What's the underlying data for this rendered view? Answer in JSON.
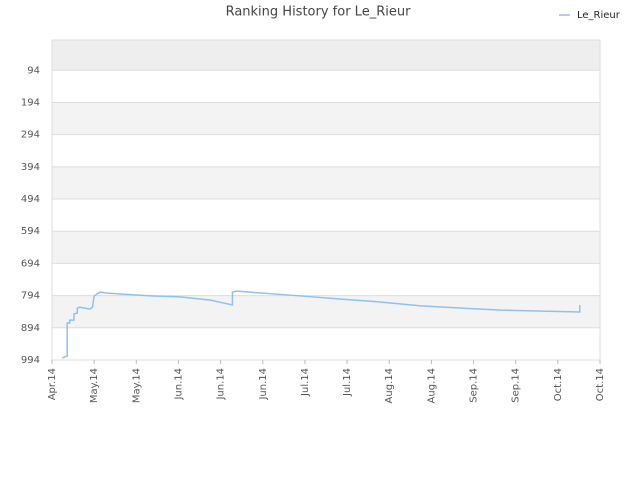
{
  "chart_data": {
    "type": "line",
    "title": "Ranking History for Le_Rieur",
    "x": [
      4.12,
      4.17,
      4.17,
      4.18,
      4.18,
      4.21,
      4.21,
      4.26,
      4.26,
      4.3,
      4.3,
      4.33,
      4.45,
      4.48,
      4.5,
      4.55,
      4.57,
      4.64,
      4.81,
      5.17,
      5.52,
      5.88,
      6.14,
      6.14,
      6.19,
      6.48,
      6.95,
      7.43,
      7.9,
      8.38,
      8.86,
      9.33,
      9.81,
      10.26,
      10.26
    ],
    "series": [
      {
        "name": "Le_Rieur",
        "color": "#90c0f0",
        "values": [
          988,
          982,
          982,
          982,
          879,
          879,
          870,
          870,
          851,
          848,
          833,
          830,
          836,
          830,
          795,
          786,
          783,
          786,
          789,
          795,
          798,
          808,
          823,
          783,
          780,
          786,
          795,
          805,
          814,
          826,
          833,
          839,
          842,
          845,
          823
        ]
      }
    ],
    "xlim": [
      4,
      10.5
    ],
    "xticks": [
      {
        "value": 4,
        "label": "Apr.14"
      },
      {
        "value": 4.5,
        "label": "May.14"
      },
      {
        "value": 5,
        "label": "May.14"
      },
      {
        "value": 5.5,
        "label": "Jun.14"
      },
      {
        "value": 6,
        "label": "Jun.14"
      },
      {
        "value": 6.5,
        "label": "Jun.14"
      },
      {
        "value": 7,
        "label": "Jul.14"
      },
      {
        "value": 7.5,
        "label": "Jul.14"
      },
      {
        "value": 8,
        "label": "Aug.14"
      },
      {
        "value": 8.5,
        "label": "Aug.14"
      },
      {
        "value": 9,
        "label": "Sep.14"
      },
      {
        "value": 9.5,
        "label": "Sep.14"
      },
      {
        "value": 10,
        "label": "Oct.14"
      },
      {
        "value": 10.5,
        "label": "Oct.14"
      }
    ],
    "ylim": [
      994,
      0
    ],
    "yticks": [
      94,
      194,
      294,
      394,
      494,
      594,
      694,
      794,
      894,
      994
    ],
    "grid": true,
    "legend": "top-right"
  }
}
